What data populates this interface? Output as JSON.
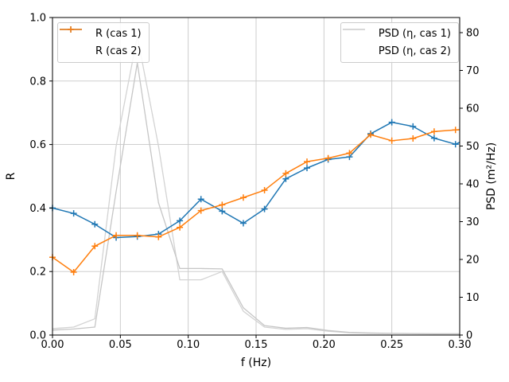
{
  "figure": {
    "background": "#ffffff",
    "grid_color": "#c8c8c8",
    "spine_color": "#000000"
  },
  "chart_data": {
    "type": "line",
    "title": "",
    "xlabel": "f (Hz)",
    "ylabel_left": "R",
    "ylabel_right": "PSD (m²/Hz)",
    "xlim": [
      0.0,
      0.3
    ],
    "ylim_left": [
      0.0,
      1.0
    ],
    "ylim_right": [
      0,
      84
    ],
    "grid": true,
    "legend_positions": [
      "upper left",
      "upper right"
    ],
    "x": [
      0.0,
      0.0156,
      0.0312,
      0.0469,
      0.0625,
      0.0781,
      0.0938,
      0.1094,
      0.125,
      0.1406,
      0.1562,
      0.1719,
      0.1875,
      0.2031,
      0.2188,
      0.2344,
      0.25,
      0.2656,
      0.2812,
      0.2969,
      0.3
    ],
    "series": [
      {
        "name": "R (cas 1)",
        "axis": "left",
        "color": "#1f77b4",
        "marker": "plus",
        "marker_count": 20,
        "width": 1.5,
        "values": [
          0.4,
          0.383,
          0.349,
          0.307,
          0.31,
          0.318,
          0.36,
          0.428,
          0.39,
          0.352,
          0.397,
          0.492,
          0.526,
          0.553,
          0.561,
          0.634,
          0.67,
          0.657,
          0.62,
          0.601,
          0.607
        ]
      },
      {
        "name": "R (cas 2)",
        "axis": "left",
        "color": "#ff7f0e",
        "marker": "plus",
        "marker_count": 20,
        "width": 1.5,
        "values": [
          0.245,
          0.198,
          0.28,
          0.314,
          0.314,
          0.309,
          0.339,
          0.392,
          0.41,
          0.433,
          0.456,
          0.509,
          0.546,
          0.557,
          0.573,
          0.631,
          0.612,
          0.619,
          0.641,
          0.646,
          0.647
        ]
      },
      {
        "name": "PSD (η, cas 1)",
        "axis": "right",
        "color": "#d3d3d3",
        "marker": "none",
        "width": 1.3,
        "values": [
          1.7,
          2.1,
          4.3,
          50,
          79,
          50,
          14.6,
          14.6,
          16.8,
          6.3,
          2.1,
          1.5,
          1.7,
          1.0,
          0.6,
          0.45,
          0.4,
          0.35,
          0.3,
          0.3,
          0.3
        ]
      },
      {
        "name": "PSD (η, cas 2)",
        "axis": "right",
        "color": "#c6c6c6",
        "marker": "none",
        "width": 1.3,
        "values": [
          1.3,
          1.6,
          2.1,
          38,
          72,
          35,
          17.6,
          17.6,
          17.5,
          7.2,
          2.5,
          1.8,
          2.0,
          1.2,
          0.7,
          0.55,
          0.45,
          0.4,
          0.35,
          0.35,
          0.35
        ]
      }
    ],
    "xtick_values": [
      0.0,
      0.05,
      0.1,
      0.15,
      0.2,
      0.25,
      0.3
    ],
    "xtick_labels": [
      "0.00",
      "0.05",
      "0.10",
      "0.15",
      "0.20",
      "0.25",
      "0.30"
    ],
    "ytick_left_values": [
      0.0,
      0.2,
      0.4,
      0.6,
      0.8,
      1.0
    ],
    "ytick_left_labels": [
      "0.0",
      "0.2",
      "0.4",
      "0.6",
      "0.8",
      "1.0"
    ],
    "ytick_right_values": [
      0,
      10,
      20,
      30,
      40,
      50,
      60,
      70,
      80
    ],
    "ytick_right_labels": [
      "0",
      "10",
      "20",
      "30",
      "40",
      "50",
      "60",
      "70",
      "80"
    ]
  }
}
